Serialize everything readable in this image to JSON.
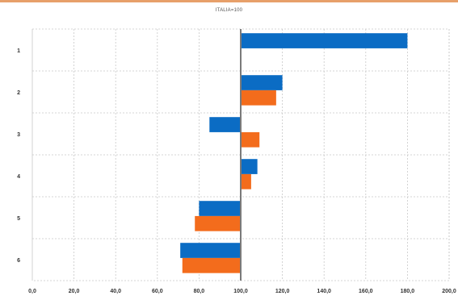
{
  "chart_data": {
    "type": "bar",
    "orientation": "horizontal",
    "title": "ITALIA=100",
    "categories": [
      "1",
      "2",
      "3",
      "4",
      "5",
      "6"
    ],
    "series": [
      {
        "values": [
          180.0,
          120.0,
          85.0,
          108.0,
          80.0,
          71.0
        ]
      },
      {
        "values": [
          null,
          117.0,
          109.0,
          105.0,
          78.0,
          72.0
        ]
      }
    ],
    "baseline": 100,
    "xlim": [
      0,
      200
    ],
    "x_ticks": [
      "0,0",
      "20,0",
      "40,0",
      "60,0",
      "80,0",
      "100,0",
      "120,0",
      "140,0",
      "160,0",
      "180,0",
      "200,0"
    ],
    "xlabel": "",
    "ylabel": "",
    "grid": true,
    "legend": "none"
  },
  "colors": {
    "series_1": "#0b6cc4",
    "series_2": "#f36c1c",
    "baseline": "#7a7a7a",
    "grid": "#c8c8c8",
    "top_rule": "#e7a06a"
  }
}
